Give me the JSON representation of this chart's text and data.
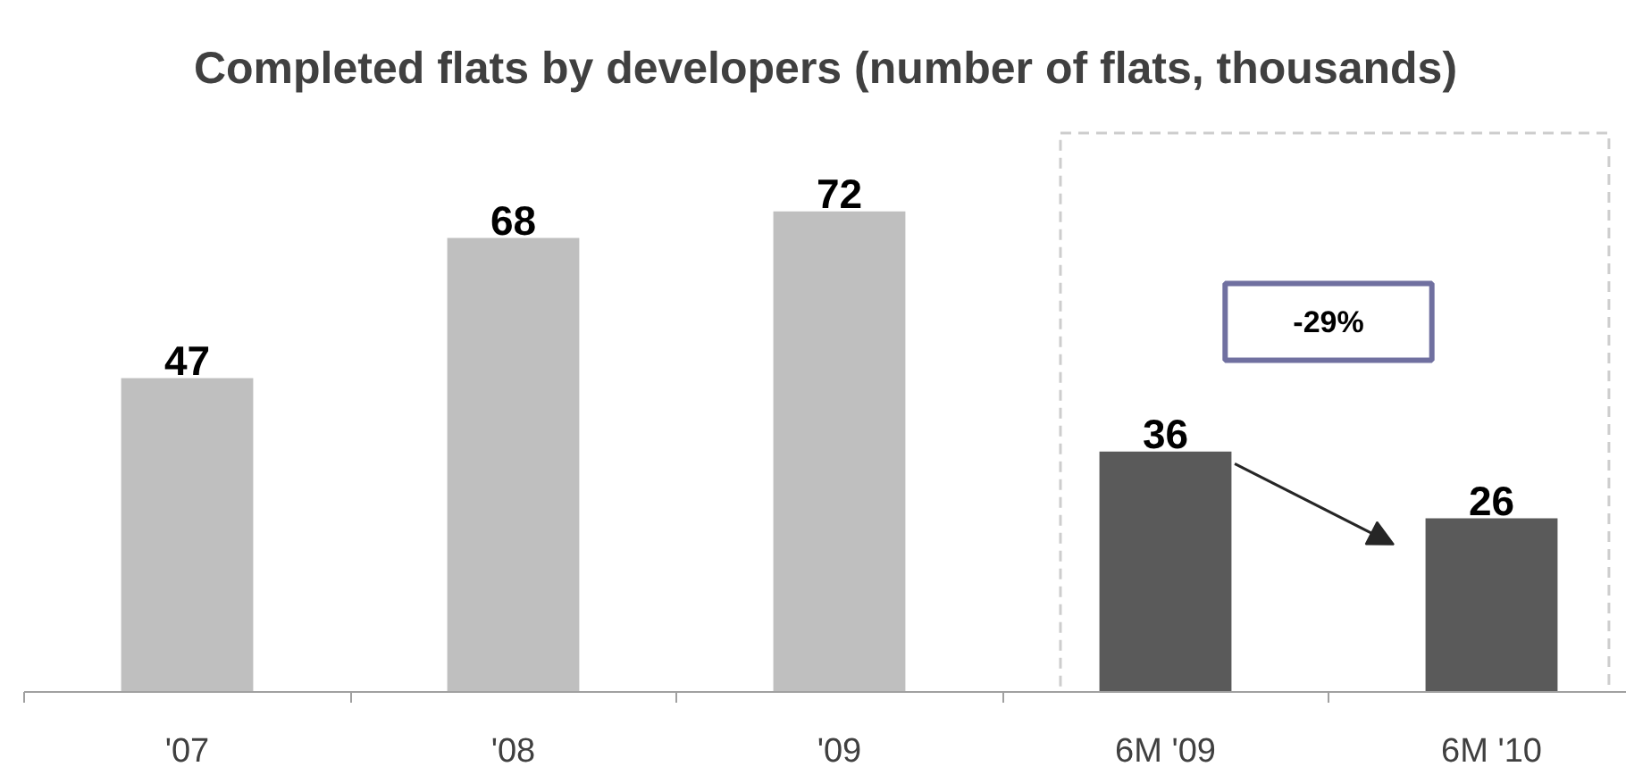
{
  "chart_data": {
    "type": "bar",
    "title": "Completed flats by developers (number of flats, thousands)",
    "categories": [
      "'07",
      "'08",
      "'09",
      "6M '09",
      "6M '10"
    ],
    "values": [
      47,
      68,
      72,
      36,
      26
    ],
    "colors": [
      "#bfbfbf",
      "#bfbfbf",
      "#bfbfbf",
      "#5a5a5a",
      "#5a5a5a"
    ],
    "data_labels": true,
    "tick_labels": "x",
    "annotations": [
      "-29%"
    ]
  }
}
